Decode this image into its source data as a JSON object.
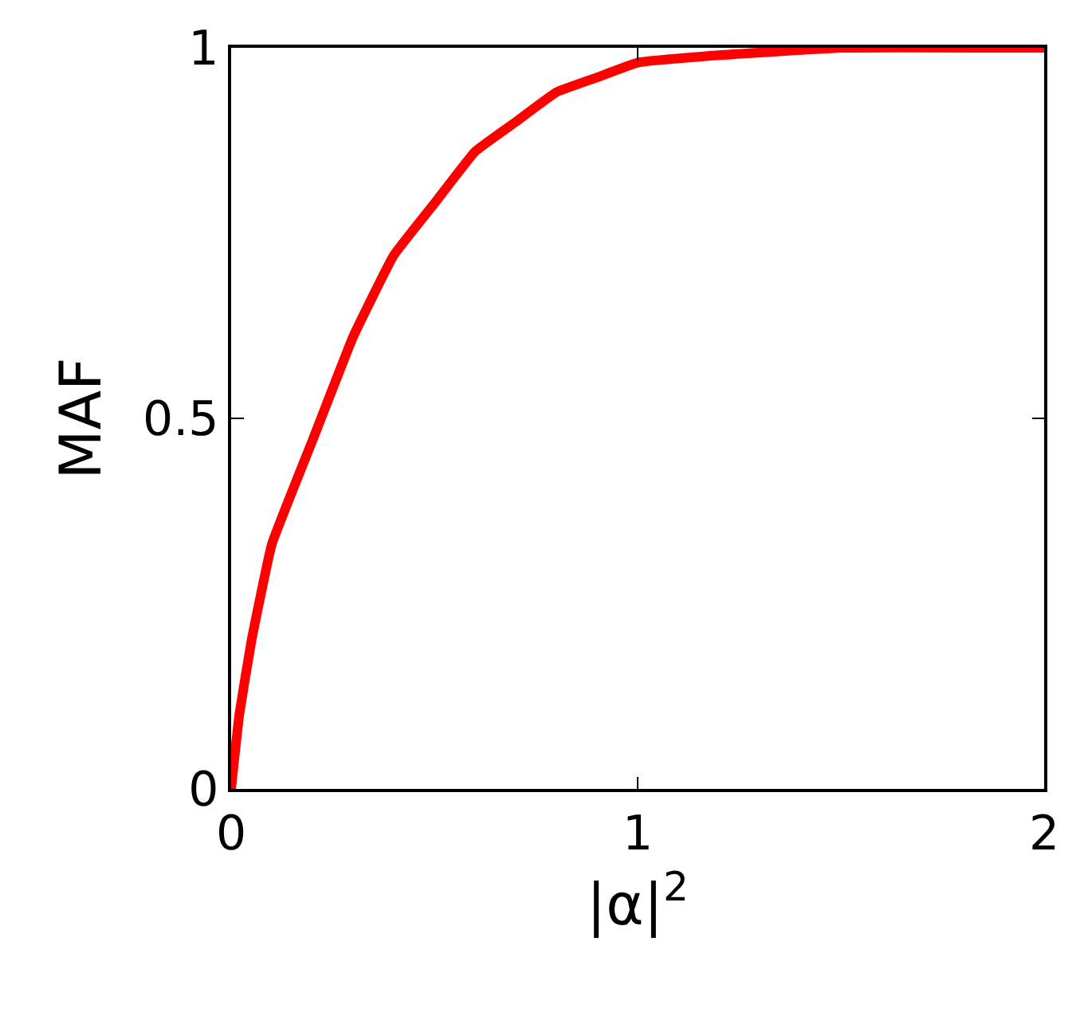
{
  "chart_data": {
    "type": "line",
    "xlabel": "|α|$^{2}$",
    "ylabel": "MAF",
    "x": [
      0,
      0.02,
      0.05,
      0.1,
      0.2,
      0.3,
      0.4,
      0.5,
      0.6,
      0.7,
      0.8,
      0.9,
      1.0,
      1.2,
      1.5,
      2.0
    ],
    "series": [
      {
        "color": "#ff0000",
        "values": [
          0,
          0.1,
          0.2,
          0.33,
          0.47,
          0.61,
          0.72,
          0.79,
          0.86,
          0.9,
          0.94,
          0.96,
          0.98,
          0.99,
          1.0,
          1.0
        ]
      }
    ],
    "xlim": [
      0,
      2
    ],
    "xticks": [
      0,
      1,
      2
    ],
    "ylim": [
      0,
      1
    ],
    "yticks": [
      0,
      0.5,
      1
    ],
    "legend": false,
    "marker": "none",
    "line_style": "solid"
  }
}
